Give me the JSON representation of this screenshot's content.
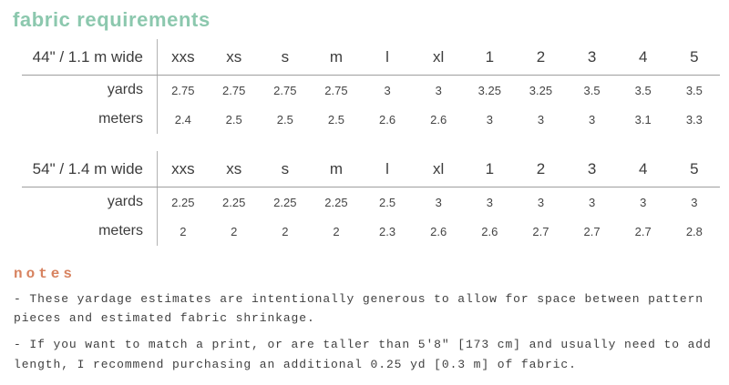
{
  "page": {
    "title": "fabric requirements"
  },
  "colors": {
    "title_accent": "#8cc8ae",
    "notes_accent": "#d7825f",
    "table_text": "#3d3d3d",
    "rule_line": "#9e9e9e"
  },
  "table": {
    "sections": [
      {
        "width_label": "44\" / 1.1 m wide",
        "sizes": [
          "xxs",
          "xs",
          "s",
          "m",
          "l",
          "xl",
          "1",
          "2",
          "3",
          "4",
          "5"
        ],
        "rows": [
          {
            "label": "yards",
            "values": [
              "2.75",
              "2.75",
              "2.75",
              "2.75",
              "3",
              "3",
              "3.25",
              "3.25",
              "3.5",
              "3.5",
              "3.5"
            ]
          },
          {
            "label": "meters",
            "values": [
              "2.4",
              "2.5",
              "2.5",
              "2.5",
              "2.6",
              "2.6",
              "3",
              "3",
              "3",
              "3.1",
              "3.3"
            ]
          }
        ]
      },
      {
        "width_label": "54\" / 1.4 m wide",
        "sizes": [
          "xxs",
          "xs",
          "s",
          "m",
          "l",
          "xl",
          "1",
          "2",
          "3",
          "4",
          "5"
        ],
        "rows": [
          {
            "label": "yards",
            "values": [
              "2.25",
              "2.25",
              "2.25",
              "2.25",
              "2.5",
              "3",
              "3",
              "3",
              "3",
              "3",
              "3"
            ]
          },
          {
            "label": "meters",
            "values": [
              "2",
              "2",
              "2",
              "2",
              "2.3",
              "2.6",
              "2.6",
              "2.7",
              "2.7",
              "2.7",
              "2.8"
            ]
          }
        ]
      }
    ]
  },
  "notes": {
    "heading": "notes",
    "items": [
      "- These yardage estimates are intentionally generous to allow for space between pattern pieces and estimated fabric shrinkage.",
      "- If you want to match a print, or are taller than 5'8\" [173 cm] and usually need to add length, I recommend purchasing an additional 0.25 yd [0.3 m] of fabric."
    ]
  }
}
